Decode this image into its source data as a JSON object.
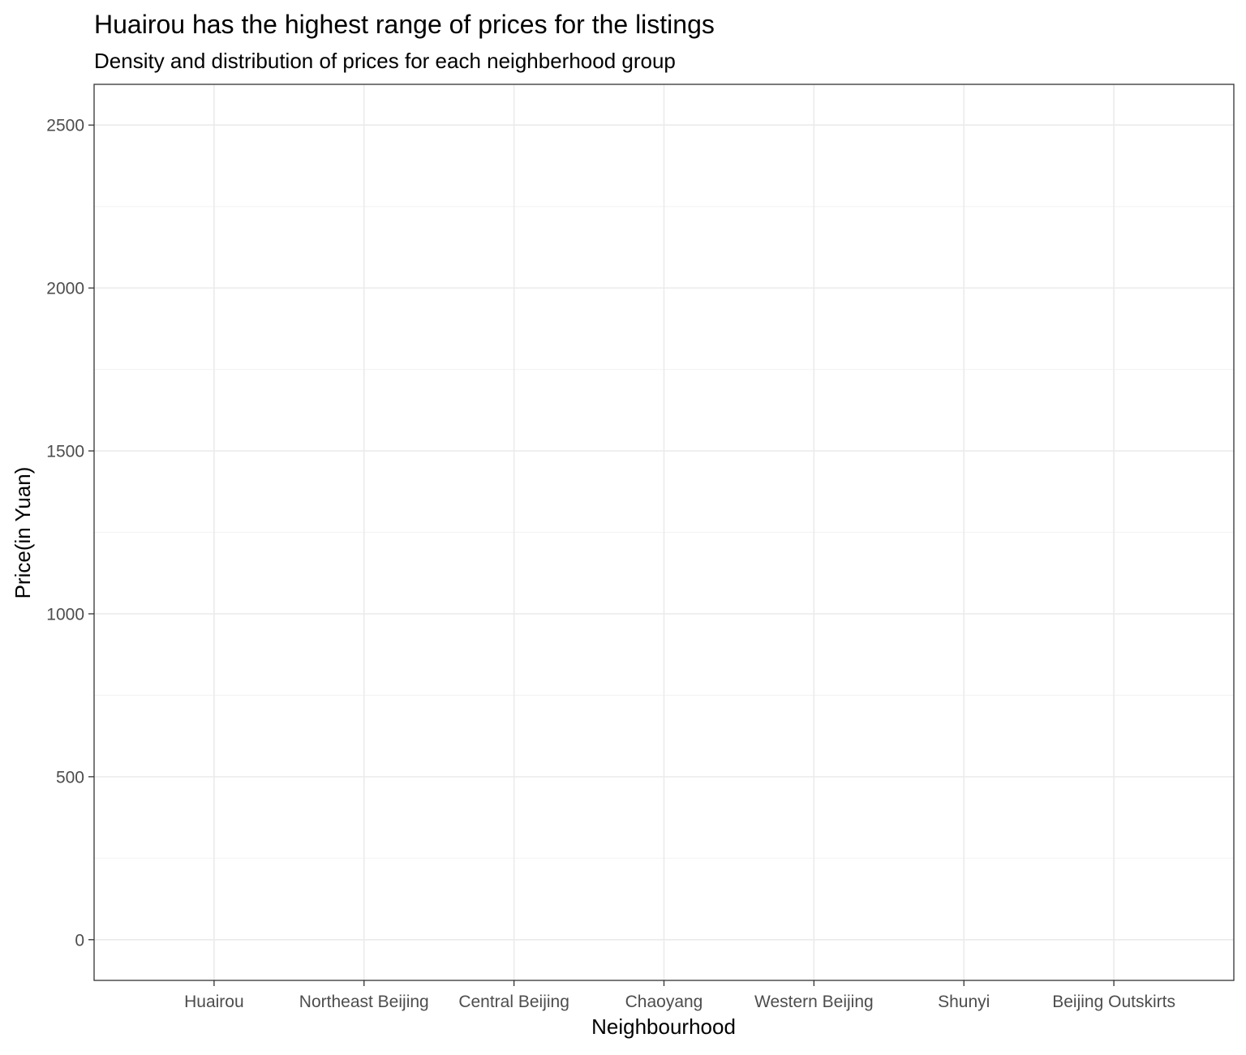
{
  "chart_data": {
    "type": "violin",
    "title": "Huairou has the highest range of prices for the listings",
    "subtitle": "Density and distribution of prices for each neighberhood group",
    "xlabel": "Neighbourhood",
    "ylabel": "Price(in Yuan)",
    "categories": [
      "Huairou",
      "Northeast Beijing",
      "Central Beijing",
      "Chaoyang",
      "Western Beijing",
      "Shunyi",
      "Beijing Outskirts"
    ],
    "y_ticks": [
      0,
      500,
      1000,
      1500,
      2000,
      2500
    ],
    "y_tick_labels": [
      "0",
      "500",
      "1000",
      "1500",
      "2000",
      "2500"
    ],
    "ylim": [
      -125,
      2625
    ],
    "grid": true,
    "legend": "none",
    "series": []
  },
  "colors": {
    "panel_border": "#333333",
    "grid_major": "#ebebeb",
    "grid_minor": "#f4f4f4",
    "tick_text": "#4d4d4d",
    "text": "#000000"
  }
}
